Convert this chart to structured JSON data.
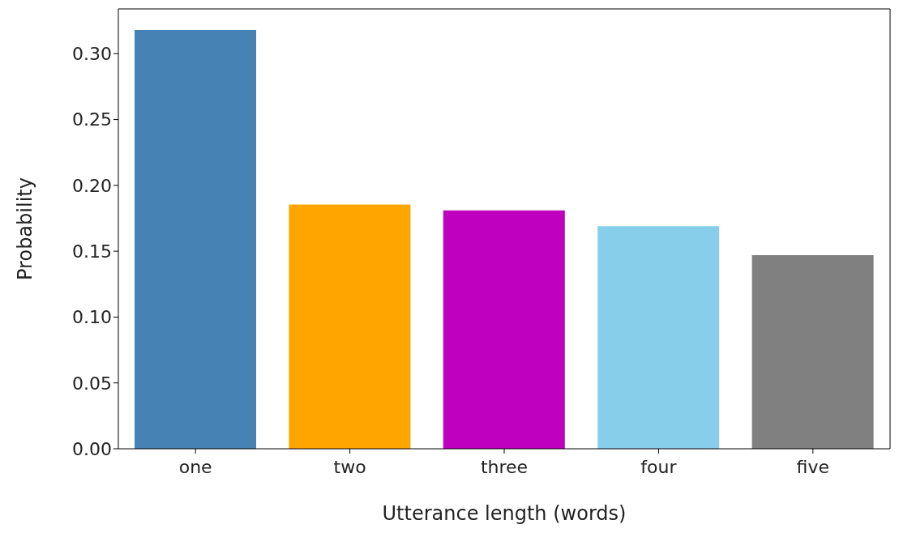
{
  "chart_data": {
    "type": "bar",
    "xlabel": "Utterance length (words)",
    "ylabel": "Probability",
    "categories": [
      "one",
      "two",
      "three",
      "four",
      "five"
    ],
    "values": [
      0.318,
      0.1855,
      0.181,
      0.169,
      0.147
    ],
    "colors": [
      "#4682b4",
      "#ffa500",
      "#bf00bf",
      "#87ceeb",
      "#808080"
    ],
    "ylim": [
      0,
      0.334
    ],
    "yticks": [
      {
        "value": 0,
        "label": "0.00"
      },
      {
        "value": 0.05,
        "label": "0.05"
      },
      {
        "value": 0.1,
        "label": "0.10"
      },
      {
        "value": 0.15,
        "label": "0.15"
      },
      {
        "value": 0.2,
        "label": "0.20"
      },
      {
        "value": 0.25,
        "label": "0.25"
      },
      {
        "value": 0.3,
        "label": "0.30"
      }
    ],
    "grid": false,
    "legend": false
  }
}
